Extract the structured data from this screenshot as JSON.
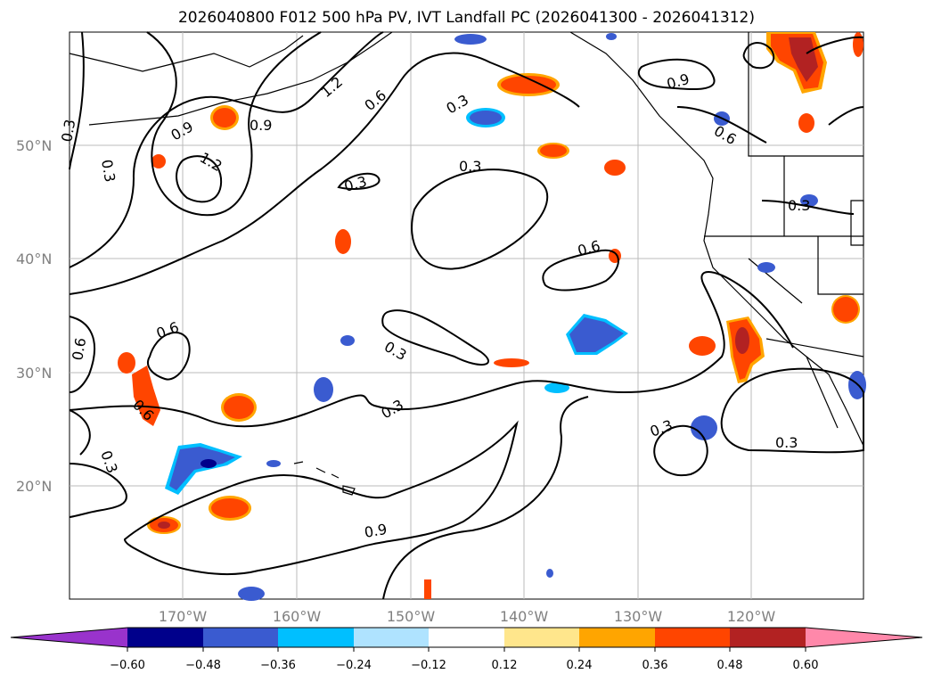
{
  "title": "2026040800 F012 500 hPa PV, IVT Landfall PC (2026041300 - 2026041312)",
  "lat_ticks": [
    "50°N",
    "40°N",
    "30°N",
    "20°N"
  ],
  "lon_ticks": [
    "170°W",
    "160°W",
    "150°W",
    "140°W",
    "130°W",
    "120°W"
  ],
  "contour_labels": [
    "0.3",
    "0.3",
    "0.9",
    "1.2",
    "0.9",
    "1.2",
    "0.6",
    "0.3",
    "0.9",
    "0.6",
    "0.3",
    "0.3",
    "0.3",
    "0.6",
    "0.6",
    "0.6",
    "0.3",
    "0.6",
    "0.3",
    "0.3",
    "0.3",
    "0.3",
    "0.9"
  ],
  "colorbar": {
    "tick_labels": [
      "−0.60",
      "−0.48",
      "−0.36",
      "−0.24",
      "−0.12",
      "0.12",
      "0.24",
      "0.36",
      "0.48",
      "0.60"
    ],
    "colors": [
      "#9933cc",
      "#00008b",
      "#3a5bd0",
      "#00bfff",
      "#afe3ff",
      "#ffffff",
      "#ffe68c",
      "#ffa500",
      "#ff4500",
      "#b22222",
      "#ff88aa"
    ]
  },
  "colors": {
    "negative_core": "#3a5bd0",
    "negative_edge": "#00bfff",
    "positive_core": "#ff4500",
    "positive_edge": "#ffa500",
    "contour": "#000000",
    "grid": "#bbbbbb"
  }
}
